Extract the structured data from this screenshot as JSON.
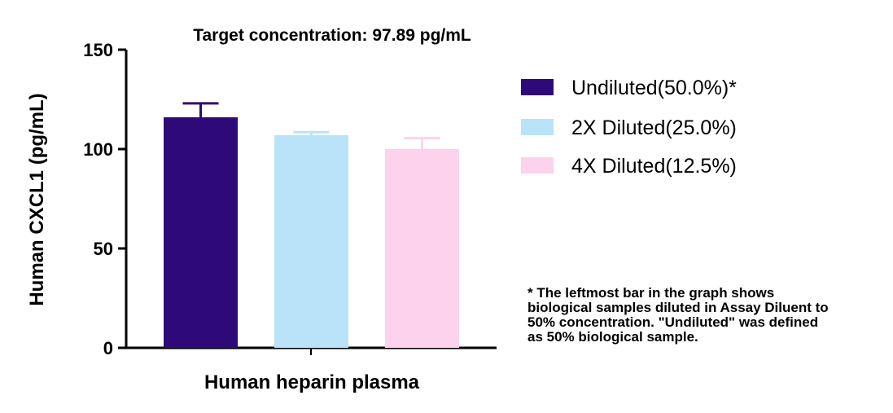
{
  "chart_data": {
    "type": "bar",
    "title": "Target concentration: 97.89 pg/mL",
    "xlabel": "Human heparin plasma",
    "ylabel": "Human CXCL1 (pg/mL)",
    "ylim": [
      0,
      150
    ],
    "yticks": [
      0,
      50,
      100,
      150
    ],
    "grid": false,
    "legend_position": "right",
    "categories": [
      "Human heparin plasma"
    ],
    "series": [
      {
        "name": "Undiluted(50.0%)*",
        "value": 116,
        "error": 7,
        "color": "#2e0a78"
      },
      {
        "name": "2X Diluted(25.0%)",
        "value": 107,
        "error": 1.5,
        "color": "#b8e3f8"
      },
      {
        "name": "4X Diluted(12.5%)",
        "value": 100,
        "error": 5.5,
        "color": "#fcd2ec"
      }
    ]
  },
  "note": {
    "lines": [
      "* The leftmost bar in the graph shows",
      "biological samples diluted in Assay Diluent to",
      "50% concentration. \"Undiluted\" was defined",
      "as 50% biological sample."
    ]
  }
}
